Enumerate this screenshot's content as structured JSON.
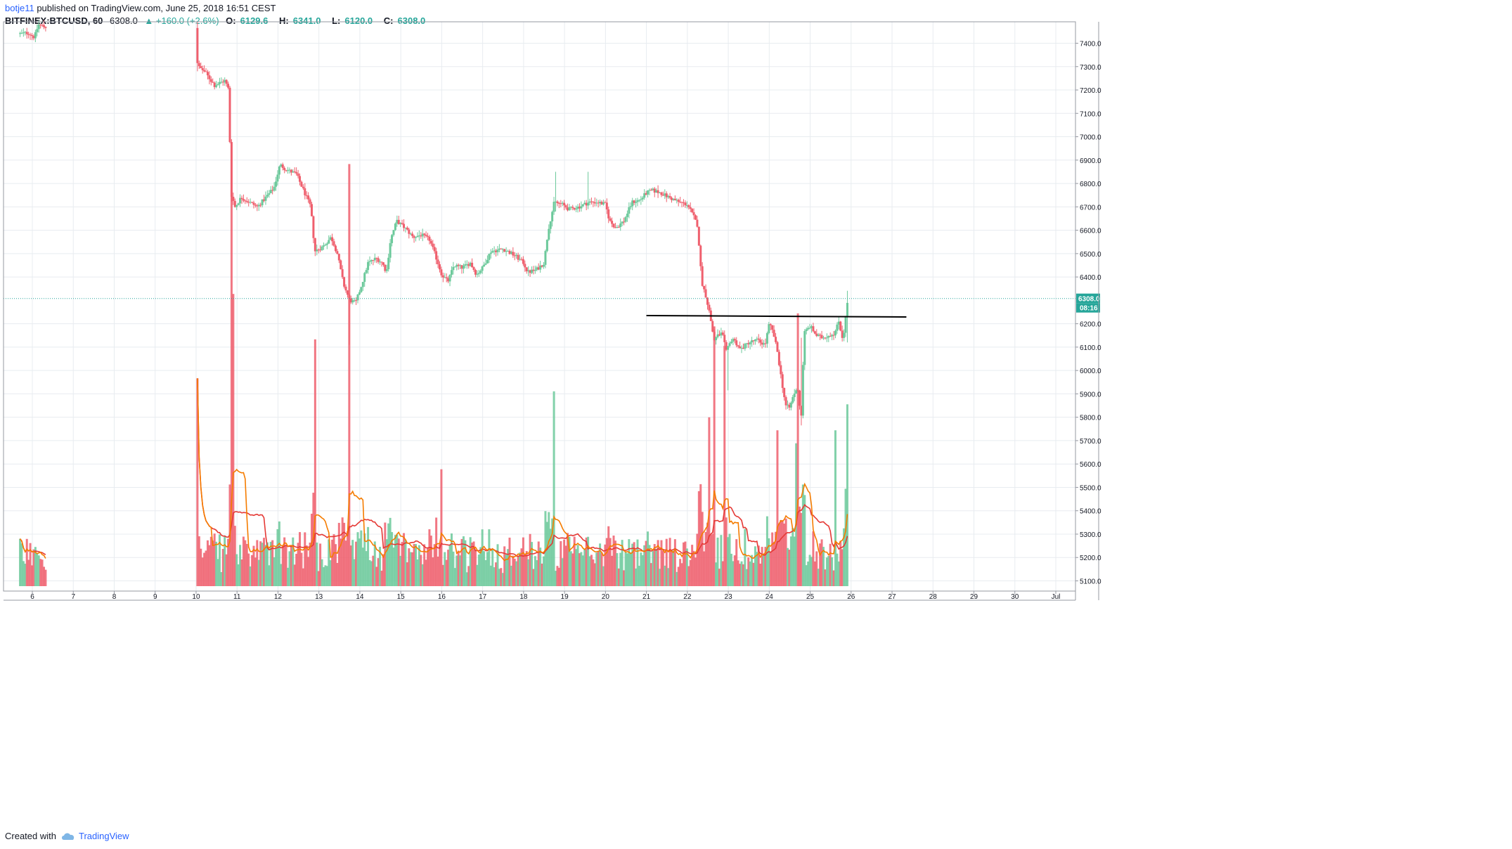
{
  "header": {
    "author": "botje11",
    "published": "published on TradingView.com, June 25, 2018 16:51 CEST",
    "symbol": "BITFINEX:BTCUSD, 60",
    "last": "6308.0",
    "change": "▲ +160.0 (+2.6%)",
    "open_label": "O:",
    "open": "6129.6",
    "high_label": "H:",
    "high": "6341.0",
    "low_label": "L:",
    "low": "6120.0",
    "close_label": "C:",
    "close": "6308.0"
  },
  "footer": {
    "created_with": "Created with",
    "brand": "TradingView",
    "brand_icon": "tradingview-cloud-icon"
  },
  "colors": {
    "up": "#6cc99b",
    "down": "#ef5f6d",
    "grid": "#e8ecf0",
    "ma_fast": "#f57c00",
    "ma_slow": "#e53935",
    "price_line": "#26a69a",
    "drawn_line": "#000000"
  },
  "chart_data": {
    "type": "candlestick",
    "x_ticks": [
      "6",
      "7",
      "8",
      "9",
      "10",
      "11",
      "12",
      "13",
      "14",
      "15",
      "16",
      "17",
      "18",
      "19",
      "20",
      "21",
      "22",
      "23",
      "24",
      "25",
      "26",
      "27",
      "28",
      "29",
      "30",
      "Jul"
    ],
    "y_ticks": [
      "7400.0",
      "7300.0",
      "7200.0",
      "7100.0",
      "7000.0",
      "6900.0",
      "6800.0",
      "6700.0",
      "6600.0",
      "6500.0",
      "6400.0",
      "6200.0",
      "6100.0",
      "6000.0",
      "5900.0",
      "5800.0",
      "5700.0",
      "5600.0",
      "5500.0",
      "5400.0",
      "5300.0",
      "5200.0",
      "5100.0"
    ],
    "y_tick_values": [
      7400,
      7300,
      7200,
      7100,
      7000,
      6900,
      6800,
      6700,
      6600,
      6500,
      6400,
      6200,
      6100,
      6000,
      5900,
      5800,
      5700,
      5600,
      5500,
      5400,
      5300,
      5200,
      5100
    ],
    "ylim": [
      5057,
      7490
    ],
    "x_start_day": 5.7,
    "x_end_day": 31.7,
    "last_price": 6308.0,
    "last_price_label": "6308.0",
    "countdown": "08:16",
    "horizontal_line": {
      "from_day": 21.0,
      "to_day": 27.35,
      "from_price": 6235,
      "to_price": 6229
    },
    "price_path": [
      [
        5.7,
        7440
      ],
      [
        5.9,
        7445
      ],
      [
        6.05,
        7425
      ],
      [
        6.15,
        7480
      ],
      [
        6.3,
        7470
      ],
      [
        6.9,
        7460
      ],
      [
        7.5,
        7480
      ],
      [
        8.0,
        7470
      ],
      [
        8.6,
        7475
      ],
      [
        9.3,
        7470
      ],
      [
        9.9,
        7470
      ],
      [
        10.05,
        7300
      ],
      [
        10.2,
        7280
      ],
      [
        10.45,
        7220
      ],
      [
        10.7,
        7240
      ],
      [
        10.8,
        7200
      ],
      [
        10.85,
        6760
      ],
      [
        10.95,
        6700
      ],
      [
        11.1,
        6740
      ],
      [
        11.3,
        6720
      ],
      [
        11.5,
        6700
      ],
      [
        11.7,
        6740
      ],
      [
        11.9,
        6780
      ],
      [
        12.05,
        6880
      ],
      [
        12.2,
        6860
      ],
      [
        12.45,
        6840
      ],
      [
        12.6,
        6780
      ],
      [
        12.8,
        6700
      ],
      [
        12.9,
        6510
      ],
      [
        13.1,
        6530
      ],
      [
        13.3,
        6570
      ],
      [
        13.45,
        6500
      ],
      [
        13.6,
        6370
      ],
      [
        13.75,
        6300
      ],
      [
        13.9,
        6290
      ],
      [
        14.05,
        6370
      ],
      [
        14.2,
        6460
      ],
      [
        14.4,
        6480
      ],
      [
        14.55,
        6460
      ],
      [
        14.65,
        6420
      ],
      [
        14.75,
        6560
      ],
      [
        14.9,
        6640
      ],
      [
        15.1,
        6610
      ],
      [
        15.3,
        6570
      ],
      [
        15.5,
        6580
      ],
      [
        15.7,
        6560
      ],
      [
        15.85,
        6490
      ],
      [
        16.0,
        6410
      ],
      [
        16.15,
        6380
      ],
      [
        16.3,
        6450
      ],
      [
        16.5,
        6440
      ],
      [
        16.7,
        6460
      ],
      [
        16.85,
        6410
      ],
      [
        17.0,
        6440
      ],
      [
        17.2,
        6510
      ],
      [
        17.5,
        6520
      ],
      [
        17.8,
        6490
      ],
      [
        18.0,
        6460
      ],
      [
        18.1,
        6420
      ],
      [
        18.3,
        6430
      ],
      [
        18.5,
        6460
      ],
      [
        18.6,
        6600
      ],
      [
        18.75,
        6720
      ],
      [
        18.95,
        6710
      ],
      [
        19.1,
        6690
      ],
      [
        19.35,
        6700
      ],
      [
        19.6,
        6720
      ],
      [
        19.8,
        6720
      ],
      [
        20.0,
        6710
      ],
      [
        20.1,
        6640
      ],
      [
        20.25,
        6610
      ],
      [
        20.45,
        6640
      ],
      [
        20.65,
        6720
      ],
      [
        20.85,
        6730
      ],
      [
        21.0,
        6760
      ],
      [
        21.15,
        6770
      ],
      [
        21.35,
        6760
      ],
      [
        21.55,
        6740
      ],
      [
        21.8,
        6720
      ],
      [
        22.0,
        6710
      ],
      [
        22.15,
        6660
      ],
      [
        22.25,
        6620
      ],
      [
        22.35,
        6380
      ],
      [
        22.45,
        6320
      ],
      [
        22.55,
        6240
      ],
      [
        22.65,
        6130
      ],
      [
        22.75,
        6150
      ],
      [
        22.85,
        6160
      ],
      [
        22.95,
        6080
      ],
      [
        23.1,
        6140
      ],
      [
        23.3,
        6090
      ],
      [
        23.5,
        6120
      ],
      [
        23.7,
        6130
      ],
      [
        23.9,
        6110
      ],
      [
        24.0,
        6200
      ],
      [
        24.1,
        6160
      ],
      [
        24.2,
        6080
      ],
      [
        24.3,
        5960
      ],
      [
        24.4,
        5850
      ],
      [
        24.5,
        5840
      ],
      [
        24.6,
        5900
      ],
      [
        24.7,
        5920
      ],
      [
        24.78,
        5790
      ],
      [
        24.85,
        6160
      ],
      [
        25.0,
        6190
      ],
      [
        25.15,
        6150
      ],
      [
        25.3,
        6140
      ],
      [
        25.45,
        6150
      ],
      [
        25.6,
        6160
      ],
      [
        25.7,
        6210
      ],
      [
        25.8,
        6130
      ],
      [
        25.92,
        6308
      ]
    ],
    "spikes": [
      {
        "day": 10.05,
        "high": 7490,
        "low": 7280
      },
      {
        "day": 13.75,
        "high": 6330,
        "low": 6110
      },
      {
        "day": 18.8,
        "high": 6850,
        "low": 6680
      },
      {
        "day": 19.6,
        "high": 6850,
        "low": 6690
      },
      {
        "day": 22.98,
        "high": 6100,
        "low": 5915
      },
      {
        "day": 24.78,
        "high": 6140,
        "low": 5765
      },
      {
        "day": 25.92,
        "high": 6341,
        "low": 6120
      }
    ],
    "volume_spikes": [
      {
        "day": 10.05,
        "value": 0.32
      },
      {
        "day": 10.85,
        "value": 0.61
      },
      {
        "day": 10.9,
        "value": 0.45
      },
      {
        "day": 12.9,
        "value": 0.38
      },
      {
        "day": 13.75,
        "value": 0.65
      },
      {
        "day": 18.75,
        "value": 0.3
      },
      {
        "day": 22.55,
        "value": 0.26
      },
      {
        "day": 22.65,
        "value": 0.4
      },
      {
        "day": 22.9,
        "value": 0.37
      },
      {
        "day": 24.2,
        "value": 0.24
      },
      {
        "day": 24.7,
        "value": 0.42
      },
      {
        "day": 24.65,
        "value": 0.22
      },
      {
        "day": 25.6,
        "value": 0.24
      },
      {
        "day": 25.92,
        "value": 0.28
      },
      {
        "day": 16.0,
        "value": 0.18
      }
    ]
  }
}
